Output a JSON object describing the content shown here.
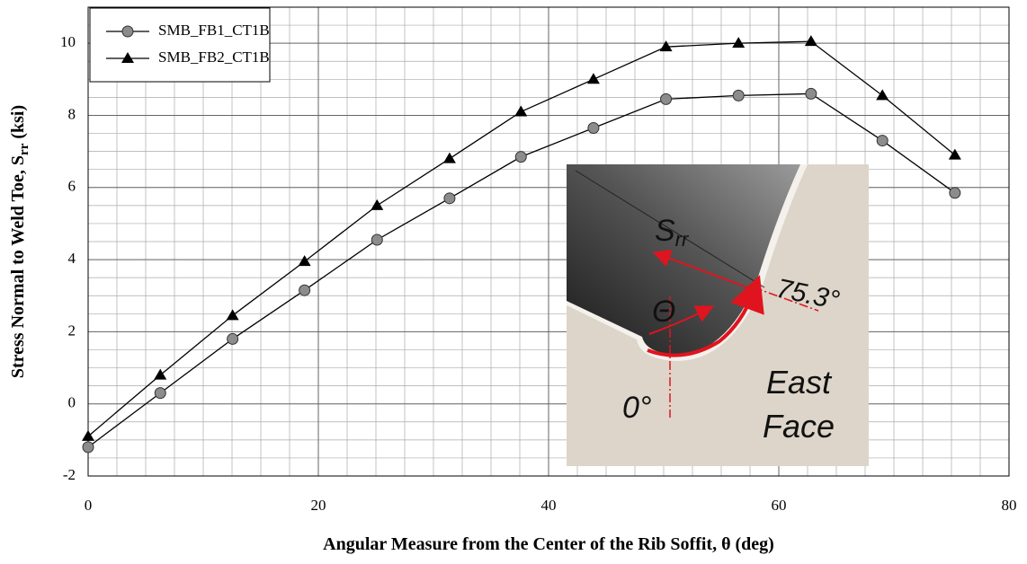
{
  "chart_data": {
    "type": "line",
    "xlabel": "Angular Measure from the Center of the Rib Soffit, θ (deg)",
    "ylabel": [
      "Stress Normal to Weld Toe, S",
      "rr",
      " (ksi)"
    ],
    "x": [
      0,
      6.27,
      12.55,
      18.8,
      25.1,
      31.4,
      37.6,
      43.9,
      50.2,
      56.5,
      62.8,
      69.0,
      75.3
    ],
    "series": [
      {
        "name": "SMB_FB1_CT1B",
        "color": "#000000",
        "marker": "circle",
        "marker_color": "#8c8c8c",
        "values": [
          -1.2,
          0.3,
          1.8,
          3.15,
          4.55,
          5.7,
          6.85,
          7.65,
          8.45,
          8.55,
          8.6,
          7.3,
          5.85
        ]
      },
      {
        "name": "SMB_FB2_CT1B",
        "color": "#000000",
        "marker": "triangle",
        "marker_color": "#000000",
        "values": [
          -0.9,
          0.8,
          2.45,
          3.95,
          5.5,
          6.8,
          8.1,
          9.0,
          9.9,
          10.0,
          10.05,
          8.55,
          6.9
        ]
      }
    ],
    "xlim": [
      0,
      80
    ],
    "xticks": [
      0,
      20,
      40,
      60,
      80
    ],
    "ylim": [
      -2,
      11
    ],
    "yticks": [
      -2,
      0,
      2,
      4,
      6,
      8,
      10
    ],
    "grid": true,
    "minor_grid": {
      "x": 2.5,
      "y": 0.5
    },
    "legend": "upper-left",
    "inset": {
      "s": "S",
      "s_sub": "rr",
      "angle_end": "75.3°",
      "theta": "Θ",
      "angle_start": "0°",
      "face": [
        "East",
        "Face"
      ]
    }
  }
}
